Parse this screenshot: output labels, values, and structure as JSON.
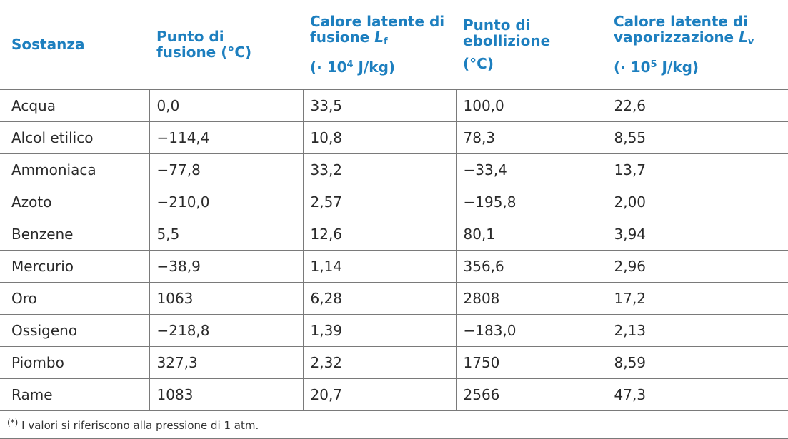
{
  "header": {
    "col1": "Sostanza",
    "col2": "Punto di fusione (°C)",
    "col3_line": "Calore latente di fusione",
    "col3_symbol": "L",
    "col3_sub": "f",
    "col3_unit_prefix": "(·  10",
    "col3_exp": "4",
    "col3_unit_suffix": "  J/kg)",
    "col4": "Punto di ebollizione",
    "col4_unit": "(°C)",
    "col5_line": "Calore latente di vaporizzazione",
    "col5_symbol": "L",
    "col5_sub": "v",
    "col5_unit_prefix": "(·  10",
    "col5_exp": "5",
    "col5_unit_suffix": "  J/kg)"
  },
  "rows": [
    {
      "sostanza": "Acqua",
      "fusione": "0,0",
      "lf": "33,5",
      "ebollizione": "100,0",
      "lv": "22,6"
    },
    {
      "sostanza": "Alcol etilico",
      "fusione": "−114,4",
      "lf": "10,8",
      "ebollizione": "78,3",
      "lv": "8,55"
    },
    {
      "sostanza": "Ammoniaca",
      "fusione": "−77,8",
      "lf": "33,2",
      "ebollizione": "−33,4",
      "lv": "13,7"
    },
    {
      "sostanza": "Azoto",
      "fusione": "−210,0",
      "lf": "2,57",
      "ebollizione": "−195,8",
      "lv": "2,00"
    },
    {
      "sostanza": "Benzene",
      "fusione": "5,5",
      "lf": "12,6",
      "ebollizione": "80,1",
      "lv": "3,94"
    },
    {
      "sostanza": "Mercurio",
      "fusione": "−38,9",
      "lf": "1,14",
      "ebollizione": "356,6",
      "lv": "2,96"
    },
    {
      "sostanza": "Oro",
      "fusione": "1063",
      "lf": "6,28",
      "ebollizione": "2808",
      "lv": "17,2"
    },
    {
      "sostanza": "Ossigeno",
      "fusione": "−218,8",
      "lf": "1,39",
      "ebollizione": "−183,0",
      "lv": "2,13"
    },
    {
      "sostanza": "Piombo",
      "fusione": "327,3",
      "lf": "2,32",
      "ebollizione": "1750",
      "lv": "8,59"
    },
    {
      "sostanza": "Rame",
      "fusione": "1083",
      "lf": "20,7",
      "ebollizione": "2566",
      "lv": "47,3"
    }
  ],
  "footnote": {
    "marker": "(*)",
    "text": " I valori si riferiscono alla pressione di 1  atm."
  },
  "colors": {
    "header_text": "#1d7fbf",
    "border": "#7a7a7a",
    "body_text": "#2a2a2a"
  }
}
